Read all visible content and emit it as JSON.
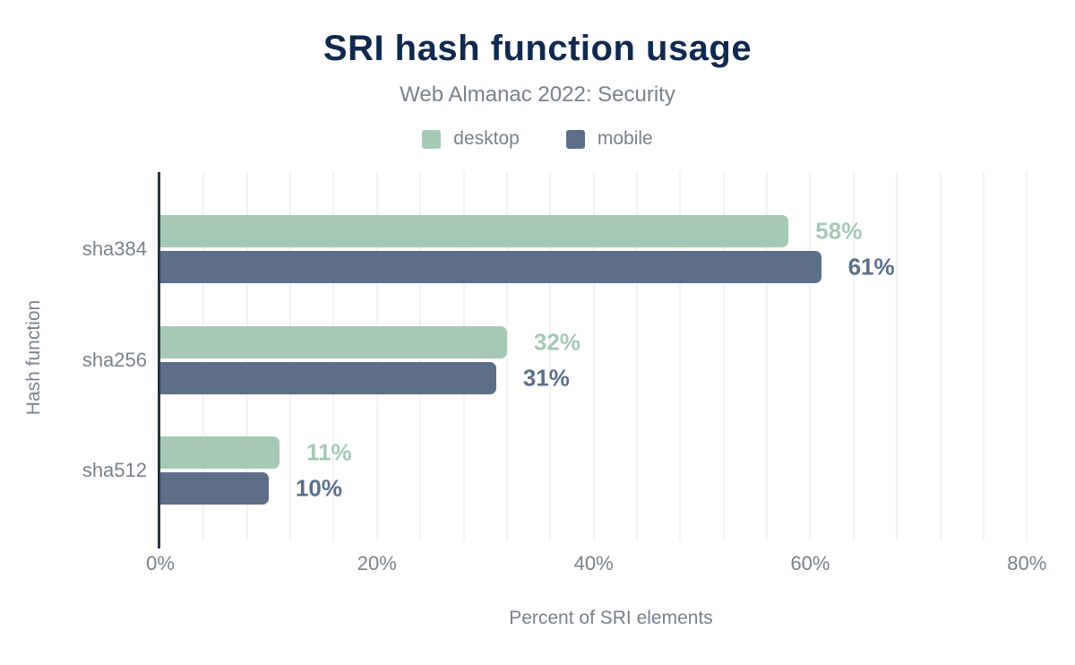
{
  "chart": {
    "title": "SRI hash function usage",
    "subtitle": "Web Almanac 2022: Security"
  },
  "chart_data": {
    "type": "bar",
    "orientation": "horizontal",
    "title": "SRI hash function usage",
    "subtitle": "Web Almanac 2022: Security",
    "categories": [
      "sha384",
      "sha256",
      "sha512"
    ],
    "series": [
      {
        "name": "desktop",
        "color": "#a6c9b6",
        "values": [
          58,
          32,
          11
        ]
      },
      {
        "name": "mobile",
        "color": "#5d6f88",
        "values": [
          61,
          31,
          10
        ]
      }
    ],
    "value_suffix": "%",
    "xlabel": "Percent of SRI elements",
    "ylabel": "Hash function",
    "x_ticks": [
      "0%",
      "20%",
      "40%",
      "60%",
      "80%"
    ],
    "x_tick_values": [
      0,
      20,
      40,
      60,
      80
    ],
    "xlim": [
      0,
      83.2
    ],
    "grid": "vertical-minor",
    "grid_minor_step": 4,
    "legend_position": "top"
  },
  "colors": {
    "title": "#11294d",
    "text_muted": "#7a8189",
    "axis_line": "#2a3342",
    "gridline": "#f3f3f3",
    "background": "#ffffff",
    "desktop": "#a6c9b6",
    "mobile": "#5d6f88"
  }
}
